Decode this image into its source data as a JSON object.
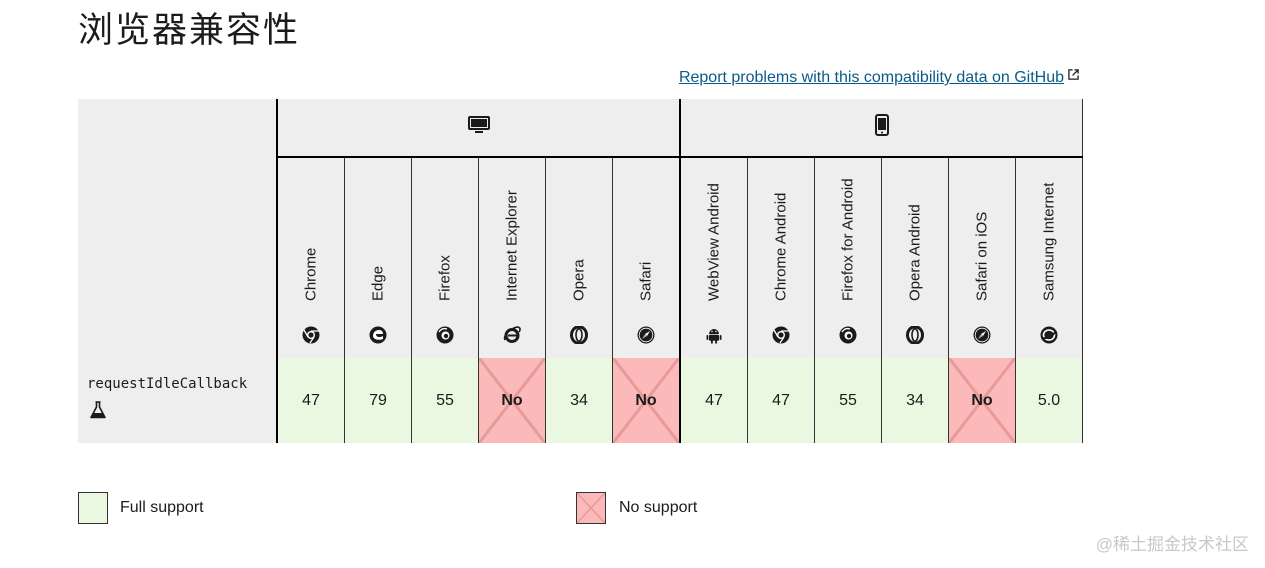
{
  "title": "浏览器兼容性",
  "report_link": "Report problems with this compatibility data on GitHub",
  "platforms": [
    {
      "name": "desktop",
      "icon": "desktop-icon"
    },
    {
      "name": "mobile",
      "icon": "mobile-icon"
    }
  ],
  "browsers": [
    {
      "name": "Chrome",
      "icon": "chrome-icon"
    },
    {
      "name": "Edge",
      "icon": "edge-icon"
    },
    {
      "name": "Firefox",
      "icon": "firefox-icon"
    },
    {
      "name": "Internet Explorer",
      "icon": "internet-explorer-icon"
    },
    {
      "name": "Opera",
      "icon": "opera-icon"
    },
    {
      "name": "Safari",
      "icon": "safari-icon"
    },
    {
      "name": "WebView Android",
      "icon": "android-icon"
    },
    {
      "name": "Chrome Android",
      "icon": "chrome-icon"
    },
    {
      "name": "Firefox for Android",
      "icon": "firefox-icon"
    },
    {
      "name": "Opera Android",
      "icon": "opera-icon"
    },
    {
      "name": "Safari on iOS",
      "icon": "safari-icon"
    },
    {
      "name": "Samsung Internet",
      "icon": "samsung-internet-icon"
    }
  ],
  "feature": {
    "name": "requestIdleCallback",
    "icon": "experimental-flask-icon"
  },
  "support": [
    "47",
    "79",
    "55",
    "No",
    "34",
    "No",
    "47",
    "47",
    "55",
    "34",
    "No",
    "5.0"
  ],
  "legend": {
    "full": "Full support",
    "none": "No support"
  },
  "watermark": "@稀土掘金技术社区",
  "colors": {
    "full_support": "#eaf8e2",
    "no_support": "#fbb9b9",
    "link": "#0b5a8a",
    "header_bg": "#eeeeee"
  }
}
